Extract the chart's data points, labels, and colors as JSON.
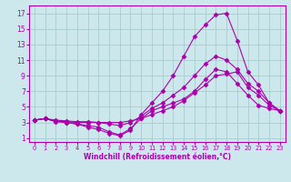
{
  "xlabel": "Windchill (Refroidissement éolien,°C)",
  "background_color": "#cce8ec",
  "grid_color": "#aacccc",
  "line_color": "#aa00aa",
  "xlim": [
    -0.5,
    23.5
  ],
  "ylim": [
    0.5,
    18.0
  ],
  "xticks": [
    0,
    1,
    2,
    3,
    4,
    5,
    6,
    7,
    8,
    9,
    10,
    11,
    12,
    13,
    14,
    15,
    16,
    17,
    18,
    19,
    20,
    21,
    22,
    23
  ],
  "yticks": [
    1,
    3,
    5,
    7,
    9,
    11,
    13,
    15,
    17
  ],
  "lines": [
    {
      "x": [
        0,
        1,
        2,
        3,
        4,
        5,
        6,
        7,
        8,
        9,
        10,
        11,
        12,
        13,
        14,
        15,
        16,
        17,
        18,
        19,
        20,
        21,
        22,
        23
      ],
      "y": [
        3.3,
        3.5,
        3.1,
        3.0,
        2.8,
        2.6,
        2.4,
        1.8,
        1.4,
        2.2,
        3.5,
        4.5,
        5.0,
        5.5,
        6.0,
        7.0,
        8.5,
        9.8,
        9.5,
        8.0,
        6.5,
        5.2,
        4.8,
        4.5
      ],
      "marker": "D",
      "markersize": 2.5,
      "linewidth": 0.8
    },
    {
      "x": [
        0,
        1,
        2,
        3,
        4,
        5,
        6,
        7,
        8,
        9,
        10,
        11,
        12,
        13,
        14,
        15,
        16,
        17,
        18,
        19,
        20,
        21,
        22,
        23
      ],
      "y": [
        3.3,
        3.5,
        3.3,
        3.2,
        3.1,
        3.1,
        3.0,
        3.0,
        3.0,
        3.2,
        3.5,
        4.0,
        4.5,
        5.0,
        5.8,
        6.8,
        7.8,
        9.0,
        9.2,
        9.5,
        7.5,
        6.5,
        5.2,
        4.5
      ],
      "marker": "D",
      "markersize": 2.5,
      "linewidth": 0.8
    },
    {
      "x": [
        0,
        1,
        2,
        3,
        4,
        5,
        6,
        7,
        8,
        9,
        10,
        11,
        12,
        13,
        14,
        15,
        16,
        17,
        18,
        19,
        20,
        21,
        22,
        23
      ],
      "y": [
        3.3,
        3.5,
        3.2,
        3.1,
        3.0,
        3.0,
        3.0,
        2.8,
        2.6,
        3.0,
        3.8,
        4.8,
        5.5,
        6.5,
        7.5,
        9.0,
        10.5,
        11.5,
        11.0,
        9.8,
        8.0,
        7.0,
        5.5,
        4.5
      ],
      "marker": "D",
      "markersize": 2.5,
      "linewidth": 0.8
    },
    {
      "x": [
        0,
        1,
        2,
        3,
        4,
        5,
        6,
        7,
        8,
        9,
        10,
        11,
        12,
        13,
        14,
        15,
        16,
        17,
        18,
        19,
        20,
        21,
        22,
        23
      ],
      "y": [
        3.3,
        3.5,
        3.2,
        3.0,
        2.8,
        2.4,
        2.1,
        1.6,
        1.3,
        2.0,
        4.0,
        5.5,
        7.0,
        9.0,
        11.5,
        14.0,
        15.5,
        16.8,
        17.0,
        13.5,
        9.5,
        7.8,
        5.5,
        4.5
      ],
      "marker": "D",
      "markersize": 2.5,
      "linewidth": 0.8
    }
  ],
  "xlabel_fontsize": 5.5,
  "xtick_fontsize": 4.8,
  "ytick_fontsize": 5.5
}
